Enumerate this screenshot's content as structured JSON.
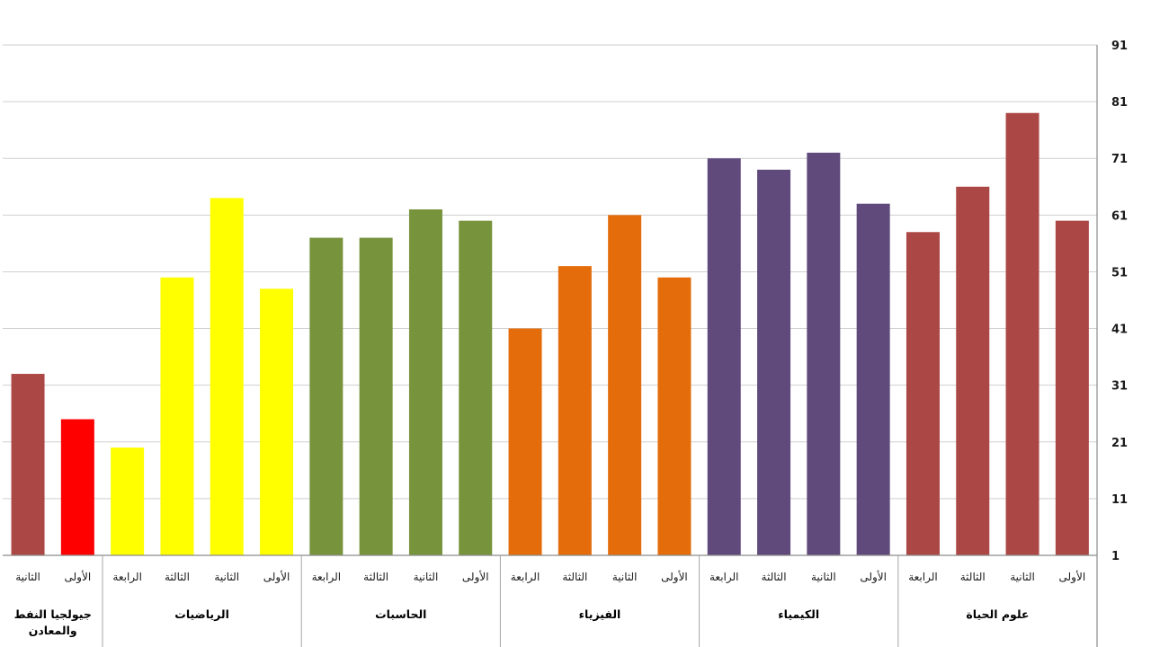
{
  "chart_data": {
    "type": "bar",
    "title": "",
    "xlabel": "",
    "ylabel": "",
    "y_axis_side": "right",
    "ylim": [
      1,
      91
    ],
    "yticks": [
      1,
      11,
      21,
      31,
      41,
      51,
      61,
      71,
      81,
      91
    ],
    "grid": true,
    "legend": "none",
    "direction": "right-to-left",
    "groups": [
      {
        "name": "علوم الحياة",
        "color": "#AB4744",
        "bars": [
          {
            "label": "الأولى",
            "value": 60
          },
          {
            "label": "الثانية",
            "value": 79
          },
          {
            "label": "الثالثة",
            "value": 66
          },
          {
            "label": "الرابعة",
            "value": 58
          }
        ]
      },
      {
        "name": "الكيمياء",
        "color": "#604A7B",
        "bars": [
          {
            "label": "الأولى",
            "value": 63
          },
          {
            "label": "الثانية",
            "value": 72
          },
          {
            "label": "الثالثة",
            "value": 69
          },
          {
            "label": "الرابعة",
            "value": 71
          }
        ]
      },
      {
        "name": "الفيزياء",
        "color": "#E46C0A",
        "bars": [
          {
            "label": "الأولى",
            "value": 50
          },
          {
            "label": "الثانية",
            "value": 61
          },
          {
            "label": "الثالثة",
            "value": 52
          },
          {
            "label": "الرابعة",
            "value": 41
          }
        ]
      },
      {
        "name": "الحاسبات",
        "color": "#77933C",
        "bars": [
          {
            "label": "الأولى",
            "value": 60
          },
          {
            "label": "الثانية",
            "value": 62
          },
          {
            "label": "الثالثة",
            "value": 57
          },
          {
            "label": "الرابعة",
            "value": 57
          }
        ]
      },
      {
        "name": "الرياضيات",
        "color": "#FFFF00",
        "bars": [
          {
            "label": "الأولى",
            "value": 48
          },
          {
            "label": "الثانية",
            "value": 64
          },
          {
            "label": "الثالثة",
            "value": 50
          },
          {
            "label": "الرابعة",
            "value": 20
          }
        ]
      },
      {
        "name_lines": [
          "جيولجيا النفط",
          "والمعادن"
        ],
        "bars": [
          {
            "label": "الأولى",
            "value": 25,
            "color": "#FF0000"
          },
          {
            "label": "الثانية",
            "value": 33,
            "color": "#AB4744"
          }
        ]
      }
    ]
  }
}
